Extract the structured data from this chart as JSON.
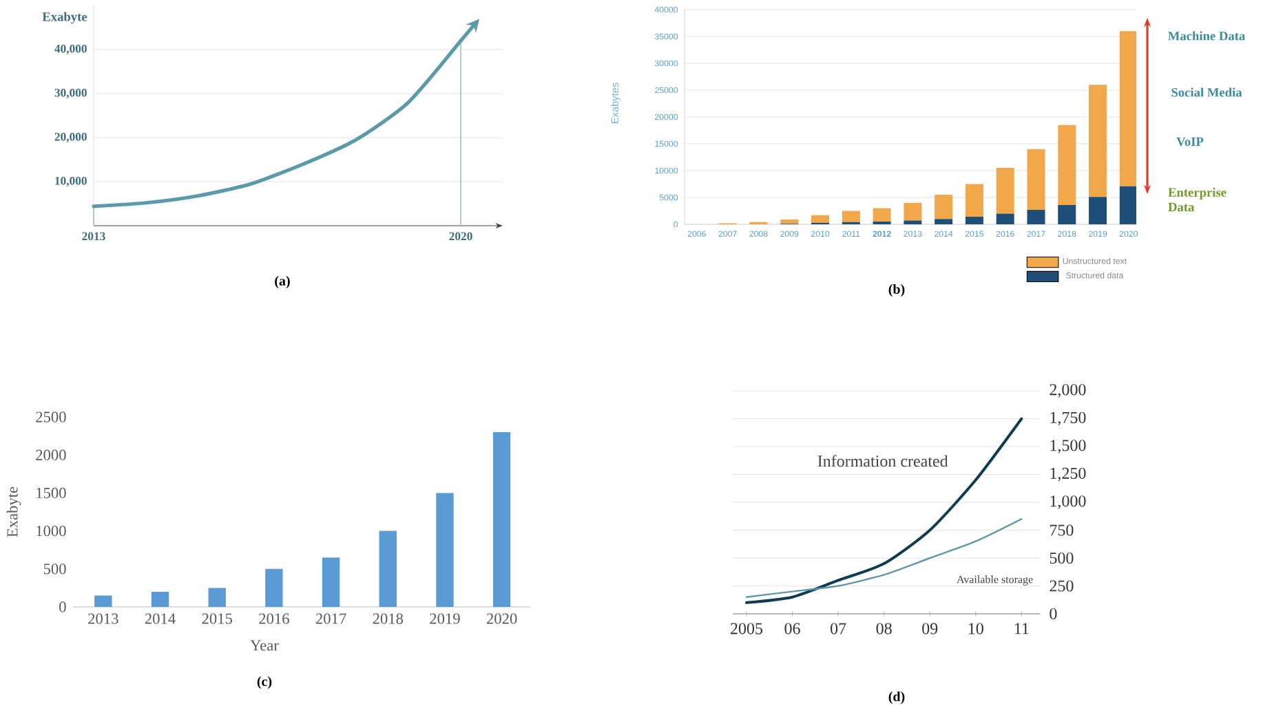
{
  "chart_data": [
    {
      "type": "line",
      "ylabel": "Exabyte",
      "x": [
        2013,
        2014,
        2015,
        2016,
        2017,
        2018,
        2019,
        2020
      ],
      "xlim": [
        2013,
        2020.8
      ],
      "xticks": [
        2013,
        2020
      ],
      "ylim": [
        0,
        50000
      ],
      "yticks": [
        {
          "value": 10000,
          "label": "10,000"
        },
        {
          "value": 20000,
          "label": "20,000"
        },
        {
          "value": 30000,
          "label": "30,000"
        },
        {
          "value": 40000,
          "label": "40,000"
        }
      ],
      "grid": "y",
      "series": [
        {
          "color": "#5b9aa9",
          "values": [
            4400,
            5200,
            6800,
            9500,
            14000,
            19500,
            28000,
            42000
          ]
        }
      ],
      "ref_lines": [
        {
          "axis": "x",
          "value": 2013,
          "color": "#9dc0c9"
        },
        {
          "axis": "x",
          "value": 2020,
          "color": "#9dc0c9"
        }
      ],
      "annotations": [
        "(a)"
      ]
    },
    {
      "type": "bar",
      "stacked": true,
      "ylabel": "Exabytes",
      "categories": [
        "2006",
        "2007",
        "2008",
        "2009",
        "2010",
        "2011",
        "**2012**",
        "2013",
        "2014",
        "2015",
        "2016",
        "2017",
        "2018",
        "2019",
        "2020"
      ],
      "ylim": [
        0,
        40000
      ],
      "yticks": [
        0,
        5000,
        10000,
        15000,
        20000,
        25000,
        30000,
        35000,
        40000
      ],
      "grid": "y",
      "legend": "bottom right",
      "series": [
        {
          "name": "Structured data",
          "color": "#1f4e79",
          "values": [
            0,
            0,
            0,
            100,
            300,
            400,
            500,
            700,
            1000,
            1400,
            2000,
            2700,
            3600,
            5100,
            7100
          ]
        },
        {
          "name": "Unstructured text",
          "color": "#f2a74b",
          "values": [
            0,
            200,
            400,
            800,
            1400,
            2100,
            2500,
            3300,
            4500,
            6100,
            8500,
            11300,
            14900,
            20900,
            28900
          ]
        }
      ],
      "annotations": [
        "Machine Data",
        "Social Media",
        "VoIP",
        "Enterprise Data",
        "(b)"
      ]
    },
    {
      "type": "bar",
      "xlabel": "Year",
      "ylabel": "Exabyte",
      "categories": [
        "2013",
        "2014",
        "2015",
        "2016",
        "2017",
        "2018",
        "2019",
        "2020"
      ],
      "values": [
        150,
        200,
        250,
        500,
        650,
        1000,
        1500,
        2300
      ],
      "color": "#5b9bd5",
      "ylim": [
        0,
        2500
      ],
      "yticks": [
        0,
        500,
        1000,
        1500,
        2000,
        2500
      ],
      "annotations": [
        "(c)"
      ]
    },
    {
      "type": "line",
      "x": [
        2005,
        2006,
        2007,
        2008,
        2009,
        2010,
        2011
      ],
      "xlim": [
        2004.7,
        2011.4
      ],
      "xticks": [
        {
          "value": 2005,
          "label": "2005"
        },
        {
          "value": 2006,
          "label": "06"
        },
        {
          "value": 2007,
          "label": "07"
        },
        {
          "value": 2008,
          "label": "08"
        },
        {
          "value": 2009,
          "label": "09"
        },
        {
          "value": 2010,
          "label": "10"
        },
        {
          "value": 2011,
          "label": "11"
        }
      ],
      "ylim": [
        0,
        2000
      ],
      "yticks": [
        0,
        {
          "value": 250,
          "label": "250"
        },
        {
          "value": 500,
          "label": "500"
        },
        {
          "value": 750,
          "label": "750"
        },
        {
          "value": 1000,
          "label": "1,000"
        },
        {
          "value": 1250,
          "label": "1,250"
        },
        {
          "value": 1500,
          "label": "1,500"
        },
        {
          "value": 1750,
          "label": "1,750"
        },
        {
          "value": 2000,
          "label": "2,000"
        }
      ],
      "grid": "y",
      "series": [
        {
          "name": "Information created",
          "color": "#0e3d4f",
          "values": [
            100,
            150,
            300,
            450,
            750,
            1200,
            1750
          ]
        },
        {
          "name": "Available storage",
          "color": "#5e98a8",
          "values": [
            150,
            200,
            250,
            350,
            500,
            650,
            850
          ]
        }
      ],
      "annotations": [
        "(d)"
      ]
    }
  ]
}
